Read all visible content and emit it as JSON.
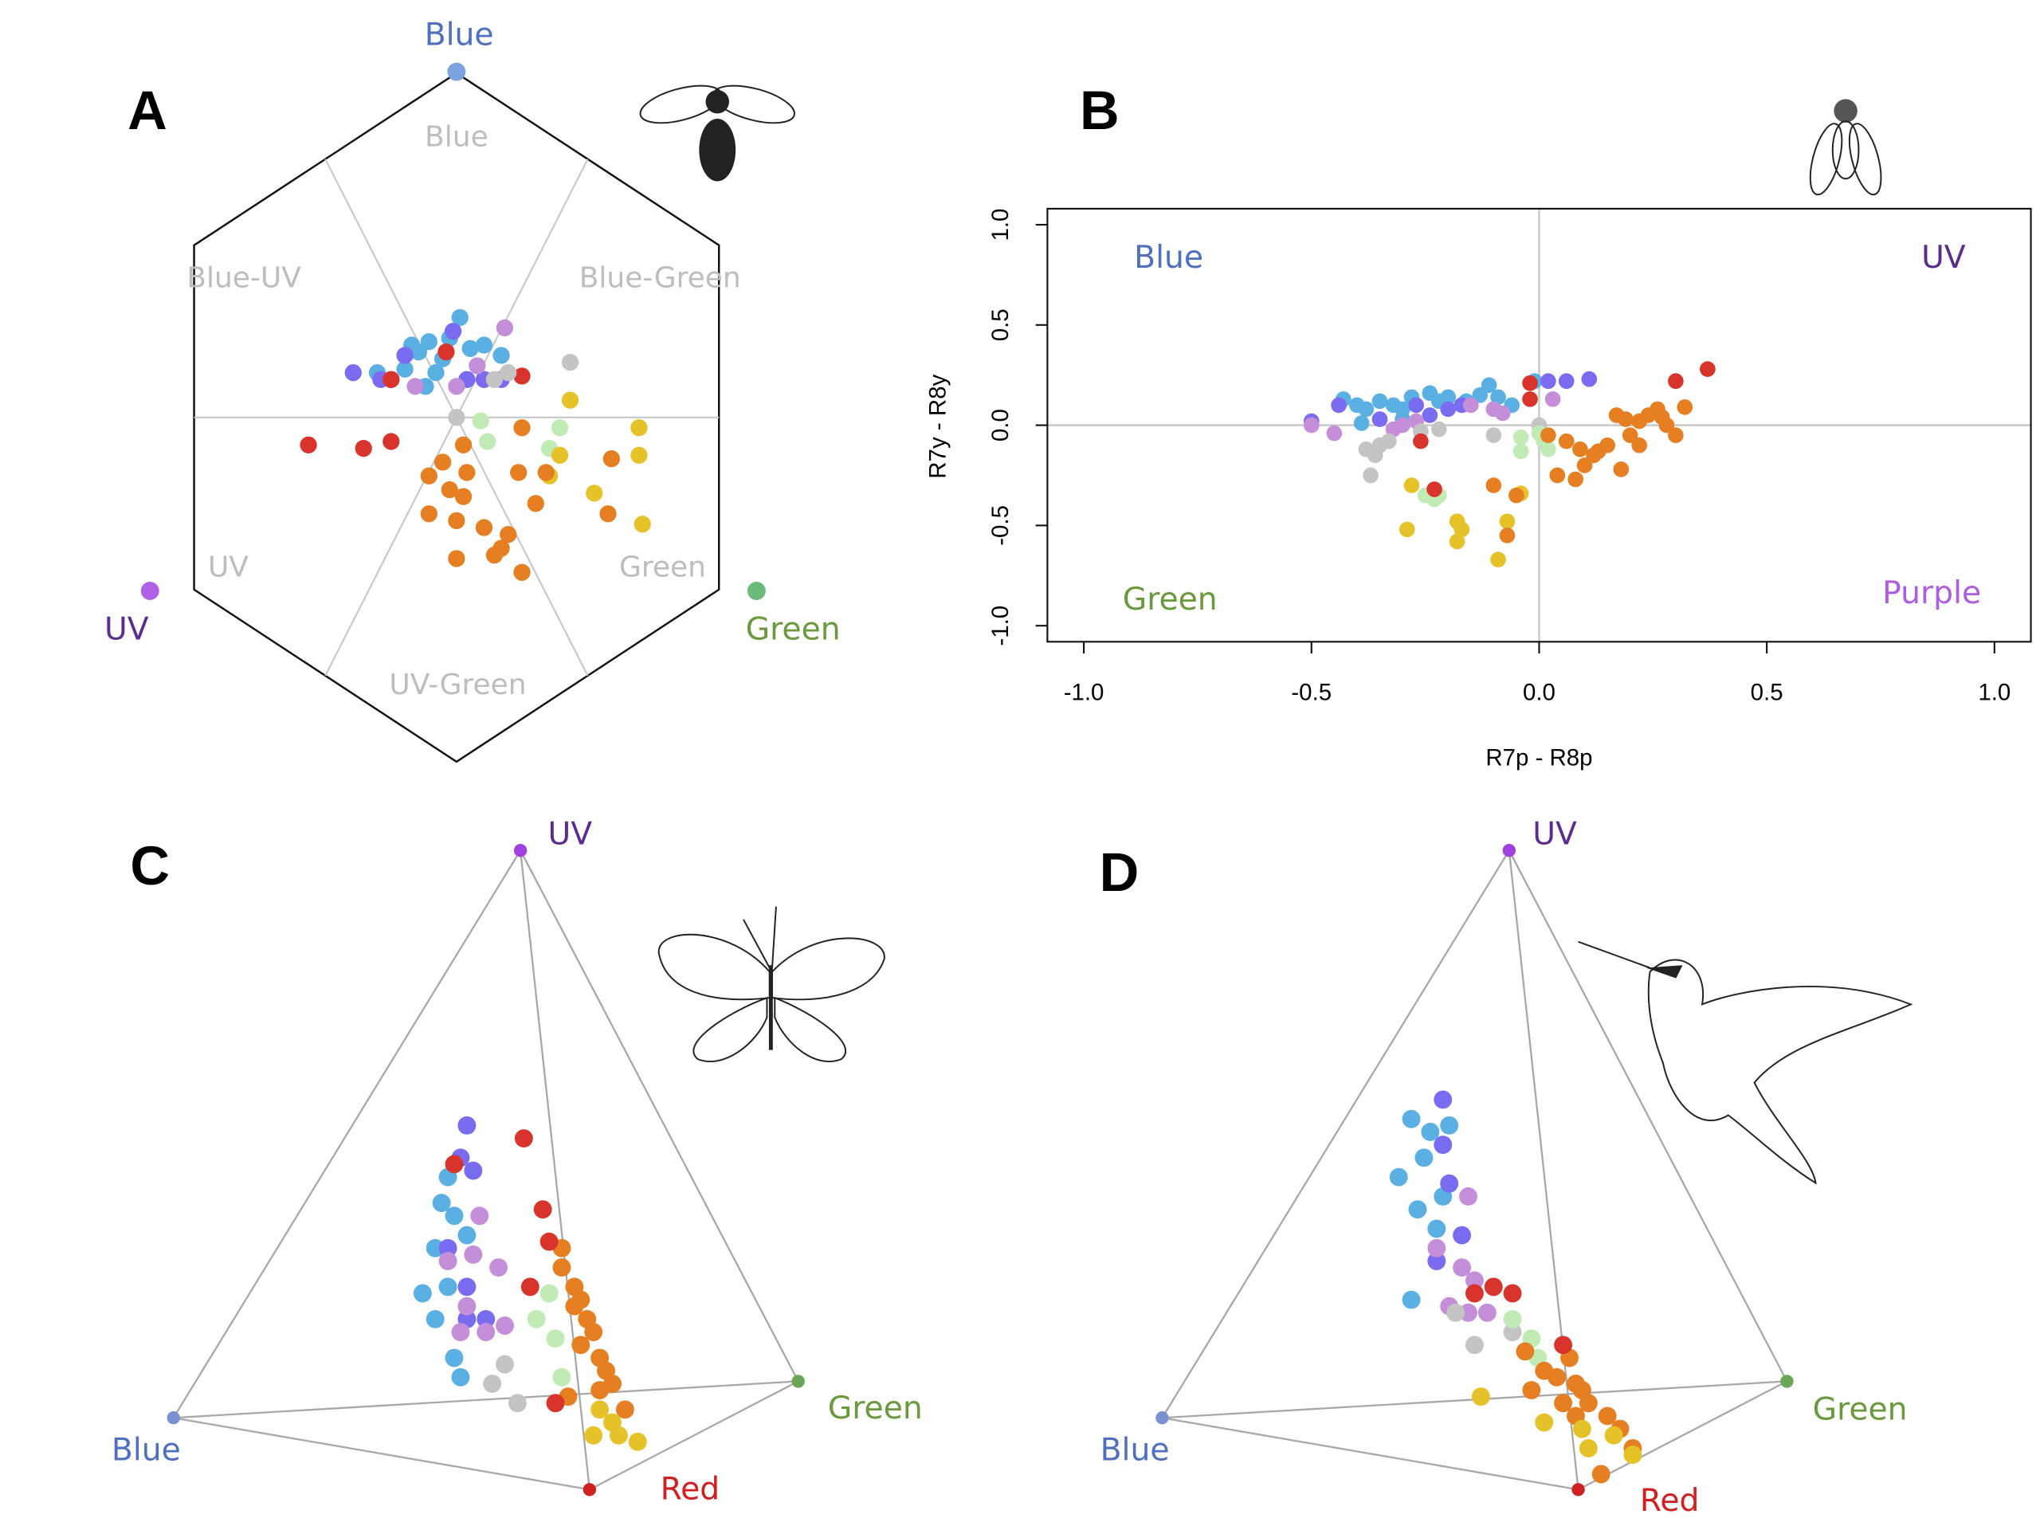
{
  "chart_data": [
    {
      "type": "hexagon",
      "label": "A",
      "xlim": [
        -1,
        1
      ],
      "ylim": [
        -1,
        1
      ],
      "vertices": [
        {
          "label": "Blue",
          "color": "#4f6fbf",
          "dot": "#7ba3e0"
        },
        {
          "label": "UV",
          "color": "#5b2c8f",
          "dot": "#b061e8"
        },
        {
          "label": "Green",
          "color": "#6a9a3c",
          "dot": "#6aba7a"
        }
      ],
      "regions": [
        "Blue",
        "Blue-UV",
        "Blue-Green",
        "UV",
        "Green",
        "UV-Green"
      ],
      "series": [
        {
          "color": "#5aafe3",
          "x": [
            -0.11,
            -0.08,
            -0.04,
            0.01,
            -0.15,
            -0.19,
            -0.06,
            0.04,
            0.08,
            0.13,
            -0.09,
            -0.02,
            -0.13,
            -0.23
          ],
          "values": [
            0.19,
            0.22,
            0.17,
            0.29,
            0.14,
            0.11,
            0.13,
            0.2,
            0.21,
            0.18,
            0.09,
            0.23,
            0.21,
            0.13
          ]
        },
        {
          "color": "#7a6cf0",
          "x": [
            -0.3,
            -0.22,
            -0.15,
            -0.01,
            0.03,
            0.08,
            0.13
          ],
          "values": [
            0.13,
            0.11,
            0.18,
            0.25,
            0.11,
            0.11,
            0.11
          ]
        },
        {
          "color": "#c48fd8",
          "x": [
            0.14,
            -0.12,
            0,
            0.06
          ],
          "values": [
            0.26,
            0.09,
            0.09,
            0.15
          ]
        },
        {
          "color": "#d9342b",
          "x": [
            -0.43,
            -0.27,
            -0.19,
            -0.03,
            0.19,
            -0.19
          ],
          "values": [
            -0.08,
            -0.09,
            -0.07,
            0.19,
            0.12,
            0.11
          ]
        },
        {
          "color": "#c4c4c4",
          "x": [
            0.33,
            0.11,
            0.15,
            0
          ],
          "values": [
            0.16,
            0.11,
            0.13,
            0
          ]
        },
        {
          "color": "#c1ebb4",
          "x": [
            0.07,
            0.09,
            0.3,
            0.27
          ],
          "values": [
            -0.01,
            -0.07,
            -0.03,
            -0.09
          ]
        },
        {
          "color": "#e6c229",
          "x": [
            0.33,
            0.53,
            0.53,
            0.3,
            0.27,
            0.4,
            0.54
          ],
          "values": [
            0.05,
            -0.03,
            -0.11,
            -0.11,
            -0.17,
            -0.22,
            -0.31
          ]
        },
        {
          "color": "#e67e22",
          "x": [
            0.19,
            -0.04,
            -0.08,
            -0.02,
            0.03,
            0.02,
            -0.08,
            0,
            0.08,
            0.15,
            0.13,
            0.19,
            0,
            0.11,
            0.18,
            0.26,
            0.45,
            0.44,
            0.23,
            0.02
          ],
          "values": [
            -0.03,
            -0.13,
            -0.17,
            -0.21,
            -0.16,
            -0.23,
            -0.28,
            -0.3,
            -0.32,
            -0.34,
            -0.38,
            -0.45,
            -0.41,
            -0.4,
            -0.16,
            -0.16,
            -0.12,
            -0.28,
            -0.25,
            -0.08
          ]
        }
      ]
    },
    {
      "type": "scatter",
      "label": "B",
      "xlabel": "R7p - R8p",
      "ylabel": "R7y - R8y",
      "xlim": [
        -1.08,
        1.08
      ],
      "ylim": [
        -1.08,
        1.08
      ],
      "xticks": [
        {
          "value": -1,
          "label": "-1.0"
        },
        {
          "value": -0.5,
          "label": "-0.5"
        },
        {
          "value": 0,
          "label": "0.0"
        },
        {
          "value": 0.5,
          "label": "0.5"
        },
        {
          "value": 1,
          "label": "1.0"
        }
      ],
      "yticks": [
        {
          "value": -1,
          "label": "-1.0"
        },
        {
          "value": -0.5,
          "label": "-0.5"
        },
        {
          "value": 0,
          "label": "0.0"
        },
        {
          "value": 0.5,
          "label": "0.5"
        },
        {
          "value": 1,
          "label": "1.0"
        }
      ],
      "hline": 0,
      "vline": 0,
      "annotations": [
        {
          "text": "Blue",
          "color": "#4f6fbf"
        },
        {
          "text": "UV",
          "color": "#5b2c8f"
        },
        {
          "text": "Green",
          "color": "#6a9a3c"
        },
        {
          "text": "Purple",
          "color": "#b05ce0"
        }
      ],
      "series": [
        {
          "color": "#5aafe3",
          "x": [
            -0.43,
            -0.4,
            -0.38,
            -0.35,
            -0.32,
            -0.3,
            -0.28,
            -0.24,
            -0.22,
            -0.2,
            -0.16,
            -0.13,
            -0.11,
            -0.09,
            -0.06,
            -0.39,
            -0.01,
            -0.3
          ],
          "values": [
            0.13,
            0.1,
            0.08,
            0.12,
            0.1,
            0.08,
            0.14,
            0.16,
            0.12,
            0.14,
            0.12,
            0.15,
            0.2,
            0.14,
            0.1,
            0.01,
            0.22,
            0.03
          ]
        },
        {
          "color": "#7a6cf0",
          "x": [
            -0.5,
            -0.44,
            -0.35,
            -0.27,
            -0.24,
            -0.2,
            -0.17,
            0.06,
            0.11,
            0.02
          ],
          "values": [
            0.02,
            0.1,
            0.03,
            0.1,
            0.05,
            0.08,
            0.1,
            0.22,
            0.23,
            0.22
          ]
        },
        {
          "color": "#c48fd8",
          "x": [
            -0.5,
            -0.45,
            -0.3,
            -0.27,
            -0.15,
            -0.1,
            0.03,
            -0.32,
            -0.08
          ],
          "values": [
            0,
            -0.04,
            0,
            0.02,
            0.1,
            0.08,
            0.13,
            -0.02,
            0.06
          ]
        },
        {
          "color": "#c4c4c4",
          "x": [
            -0.38,
            -0.36,
            -0.35,
            -0.37,
            -0.33,
            -0.26,
            -0.22,
            -0.1,
            0
          ],
          "values": [
            -0.12,
            -0.15,
            -0.1,
            -0.25,
            -0.08,
            -0.03,
            -0.02,
            -0.05,
            0
          ]
        },
        {
          "color": "#c1ebb4",
          "x": [
            -0.25,
            -0.23,
            -0.04,
            -0.04,
            0.01,
            0.02,
            0,
            -0.22
          ],
          "values": [
            -0.35,
            -0.37,
            -0.06,
            -0.13,
            -0.08,
            -0.12,
            -0.04,
            -0.35
          ]
        },
        {
          "color": "#e6c229",
          "x": [
            -0.28,
            -0.29,
            -0.18,
            -0.17,
            -0.18,
            -0.09,
            -0.07,
            -0.04
          ],
          "values": [
            -0.3,
            -0.52,
            -0.48,
            -0.52,
            -0.58,
            -0.67,
            -0.48,
            -0.34
          ]
        },
        {
          "color": "#e67e22",
          "x": [
            0.02,
            0.06,
            0.04,
            0.08,
            0.1,
            0.12,
            0.15,
            0.17,
            0.19,
            0.2,
            0.22,
            0.24,
            0.26,
            0.28,
            0.3,
            0.32,
            0.18,
            0.13,
            0.09,
            -0.05,
            -0.07,
            -0.1,
            0.22,
            0.27
          ],
          "values": [
            -0.05,
            -0.08,
            -0.25,
            -0.27,
            -0.2,
            -0.15,
            -0.1,
            0.05,
            0.03,
            -0.05,
            0.02,
            0.05,
            0.08,
            0,
            -0.05,
            0.09,
            -0.22,
            -0.13,
            -0.12,
            -0.35,
            -0.55,
            -0.3,
            -0.1,
            0.04
          ]
        },
        {
          "color": "#d9342b",
          "x": [
            0.37,
            0.3,
            -0.02,
            -0.02,
            -0.26,
            -0.23
          ],
          "values": [
            0.28,
            0.22,
            0.21,
            0.13,
            -0.08,
            -0.32
          ]
        }
      ]
    },
    {
      "type": "tetrahedron",
      "label": "C",
      "xlim": [
        0,
        1
      ],
      "ylim": [
        0,
        1
      ],
      "vertices": [
        {
          "label": "UV",
          "color": "#5b2c8f",
          "dot": "#a040e0"
        },
        {
          "label": "Blue",
          "color": "#4f6fbf",
          "dot": "#7b90d0"
        },
        {
          "label": "Green",
          "color": "#6a9a3c",
          "dot": "#6aa858"
        },
        {
          "label": "Red",
          "color": "#d02020",
          "dot": "#d02020"
        }
      ],
      "series": [
        {
          "color": "#5aafe3",
          "x": [
            0.44,
            0.43,
            0.42,
            0.4,
            0.42,
            0.45,
            0.46,
            0.44,
            0.47,
            0.45
          ],
          "values": [
            0.49,
            0.45,
            0.38,
            0.31,
            0.27,
            0.21,
            0.18,
            0.32,
            0.4,
            0.43
          ]
        },
        {
          "color": "#7a6cf0",
          "x": [
            0.47,
            0.48,
            0.46,
            0.47,
            0.5,
            0.44,
            0.47
          ],
          "values": [
            0.57,
            0.5,
            0.52,
            0.27,
            0.27,
            0.38,
            0.32
          ]
        },
        {
          "color": "#c48fd8",
          "x": [
            0.49,
            0.52,
            0.48,
            0.47,
            0.53,
            0.5,
            0.44,
            0.46
          ],
          "values": [
            0.43,
            0.35,
            0.37,
            0.29,
            0.26,
            0.25,
            0.36,
            0.25
          ]
        },
        {
          "color": "#c4c4c4",
          "x": [
            0.51,
            0.55,
            0.53
          ],
          "values": [
            0.17,
            0.14,
            0.2
          ]
        },
        {
          "color": "#c1ebb4",
          "x": [
            0.6,
            0.58,
            0.61,
            0.62
          ],
          "values": [
            0.31,
            0.27,
            0.24,
            0.18
          ]
        },
        {
          "color": "#e67e22",
          "x": [
            0.62,
            0.62,
            0.64,
            0.65,
            0.66,
            0.67,
            0.65,
            0.68,
            0.69,
            0.7,
            0.72,
            0.68,
            0.63,
            0.64
          ],
          "values": [
            0.38,
            0.35,
            0.32,
            0.3,
            0.27,
            0.25,
            0.23,
            0.21,
            0.19,
            0.17,
            0.13,
            0.16,
            0.15,
            0.29
          ]
        },
        {
          "color": "#e6c229",
          "x": [
            0.68,
            0.7,
            0.67,
            0.74,
            0.71
          ],
          "values": [
            0.13,
            0.11,
            0.09,
            0.08,
            0.09
          ]
        },
        {
          "color": "#d9342b",
          "x": [
            0.56,
            0.59,
            0.6,
            0.57,
            0.61,
            0.45
          ],
          "values": [
            0.55,
            0.44,
            0.39,
            0.32,
            0.14,
            0.51
          ]
        }
      ]
    },
    {
      "type": "tetrahedron",
      "label": "D",
      "xlim": [
        0,
        1
      ],
      "ylim": [
        0,
        1
      ],
      "vertices": [
        {
          "label": "UV",
          "color": "#5b2c8f",
          "dot": "#a040e0"
        },
        {
          "label": "Blue",
          "color": "#4f6fbf",
          "dot": "#7b90d0"
        },
        {
          "label": "Green",
          "color": "#6a9a3c",
          "dot": "#6aa858"
        },
        {
          "label": "Red",
          "color": "#d02020",
          "dot": "#d02020"
        }
      ],
      "series": [
        {
          "color": "#5aafe3",
          "x": [
            0.4,
            0.43,
            0.46,
            0.38,
            0.41,
            0.44,
            0.4,
            0.45,
            0.42
          ],
          "values": [
            0.58,
            0.56,
            0.57,
            0.49,
            0.44,
            0.41,
            0.3,
            0.46,
            0.52
          ]
        },
        {
          "color": "#7a6cf0",
          "x": [
            0.45,
            0.46,
            0.48,
            0.44,
            0.45
          ],
          "values": [
            0.61,
            0.48,
            0.4,
            0.36,
            0.54
          ]
        },
        {
          "color": "#c48fd8",
          "x": [
            0.49,
            0.48,
            0.5,
            0.46,
            0.49,
            0.52,
            0.44
          ],
          "values": [
            0.46,
            0.35,
            0.33,
            0.29,
            0.28,
            0.28,
            0.38
          ]
        },
        {
          "color": "#c4c4c4",
          "x": [
            0.5,
            0.47,
            0.56
          ],
          "values": [
            0.23,
            0.28,
            0.25
          ]
        },
        {
          "color": "#c1ebb4",
          "x": [
            0.56,
            0.59,
            0.6
          ],
          "values": [
            0.27,
            0.24,
            0.21
          ]
        },
        {
          "color": "#e67e22",
          "x": [
            0.58,
            0.61,
            0.63,
            0.65,
            0.66,
            0.67,
            0.68,
            0.64,
            0.71,
            0.73,
            0.59,
            0.7,
            0.66,
            0.75
          ],
          "values": [
            0.22,
            0.19,
            0.18,
            0.21,
            0.17,
            0.16,
            0.14,
            0.14,
            0.12,
            0.1,
            0.16,
            0.03,
            0.12,
            0.07
          ]
        },
        {
          "color": "#e6c229",
          "x": [
            0.51,
            0.61,
            0.67,
            0.72,
            0.75,
            0.68
          ],
          "values": [
            0.15,
            0.11,
            0.1,
            0.09,
            0.06,
            0.07
          ]
        },
        {
          "color": "#d9342b",
          "x": [
            0.53,
            0.56,
            0.5,
            0.64
          ],
          "values": [
            0.32,
            0.31,
            0.31,
            0.23
          ]
        }
      ]
    }
  ]
}
